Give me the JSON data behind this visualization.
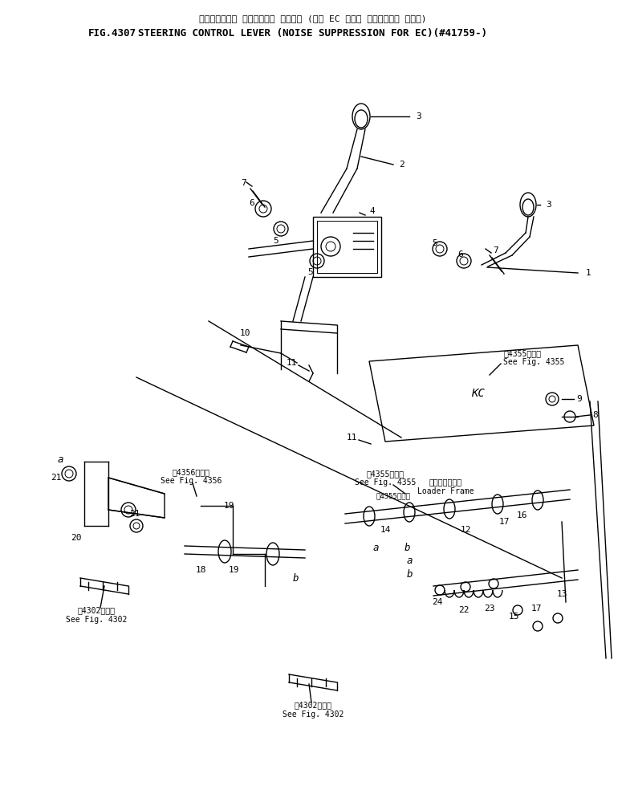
{
  "title_japanese": "ステアリング゛ コントロール レハ゛ー (エク EC ムケ゛ テインカォン ショウ)",
  "title_line1": "ステアリング゛ コントロール レハ゛ー (エク EC ムケ゛ テインカォン ショウ)",
  "fig_number": "FIG.4307",
  "title_line2": "STEERING CONTROL LEVER (NOISE SUPPRESSION FOR EC)(#41759-)",
  "bg_color": "#ffffff",
  "line_color": "#000000",
  "text_color": "#000000",
  "font_size_title": 9,
  "font_size_label": 8,
  "font_size_small": 7
}
